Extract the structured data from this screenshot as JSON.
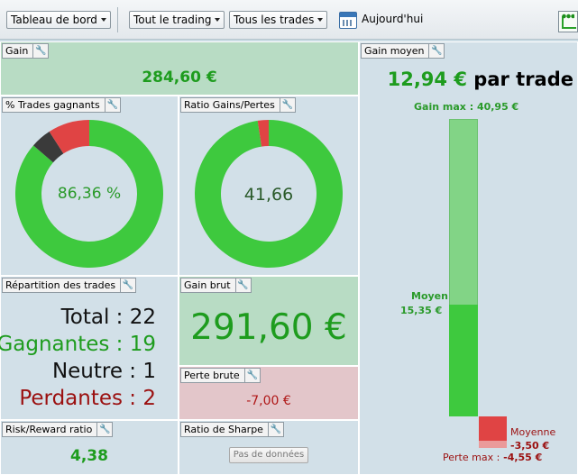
{
  "toolbar": {
    "dashboard": "Tableau de bord",
    "trading_filter": "Tout le trading",
    "trades_filter": "Tous les trades",
    "today": "Aujourd'hui",
    "icons": [
      "calendar-icon",
      "chart-icon"
    ]
  },
  "gain": {
    "title": "Gain",
    "value": "284,60 €"
  },
  "win_trades": {
    "title": "% Trades gagnants",
    "center": "86,36 %",
    "win_fraction": 0.8636,
    "neutral_fraction": 0.0455,
    "loss_fraction": 0.0909
  },
  "ratio": {
    "title": "Ratio Gains/Pertes",
    "center": "41,66",
    "gain_fraction": 0.976,
    "loss_fraction": 0.024
  },
  "breakdown": {
    "title": "Répartition des trades",
    "total_label": "Total : 22",
    "winners_label": "Gagnantes : 19",
    "neutral_label": "Neutre : 1",
    "losers_label": "Perdantes : 2"
  },
  "gross_gain": {
    "title": "Gain brut",
    "value": "291,60 €"
  },
  "gross_loss": {
    "title": "Perte brute",
    "value": "-7,00 €"
  },
  "risk_reward": {
    "title": "Risk/Reward ratio",
    "value": "4,38"
  },
  "sharpe": {
    "title": "Ratio de Sharpe",
    "button": "Pas de données"
  },
  "avg_gain": {
    "title": "Gain moyen",
    "value": "12,94 €",
    "suffix": "par trade",
    "max_gain_label": "Gain max :",
    "max_gain_value": "40,95 €",
    "avg_label": "Moyen",
    "avg_value": "15,35 €",
    "avg_loss_label": "Moyenne",
    "avg_loss_value": "-3,50 €",
    "max_loss_label": "Perte max :",
    "max_loss_value": "-4,55 €",
    "max_gain_num": 40.95,
    "avg_gain_num": 15.35,
    "avg_loss_num": -3.5,
    "max_loss_num": -4.55
  },
  "colors": {
    "green": "#3ec93e",
    "light_green": "#82d486",
    "red": "#e04444",
    "dark_red": "#9b1010",
    "dark_grey": "#3a3a3a"
  }
}
